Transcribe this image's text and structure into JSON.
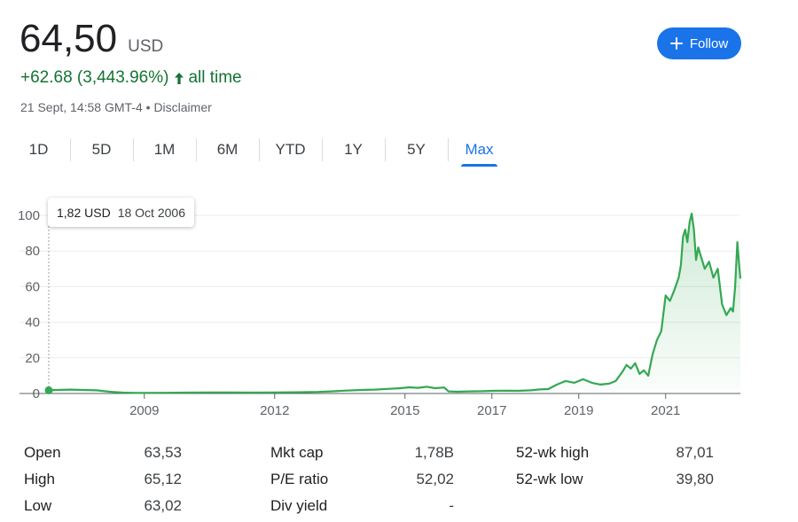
{
  "quote": {
    "price": "64,50",
    "currency": "USD",
    "change": "+62.68 (3,443.96%)",
    "change_period": "all time",
    "timestamp": "21 Sept, 14:58 GMT-4",
    "separator": "•",
    "disclaimer": "Disclaimer"
  },
  "follow_button": {
    "label": "Follow"
  },
  "ranges": [
    "1D",
    "5D",
    "1M",
    "6M",
    "YTD",
    "1Y",
    "5Y",
    "Max"
  ],
  "active_range": "Max",
  "tooltip": {
    "value": "1,82 USD",
    "date": "18 Oct 2006"
  },
  "colors": {
    "line": "#34a853",
    "accent": "#1a73e8",
    "positive": "#137333"
  },
  "chart_data": {
    "type": "area",
    "x_ticks": [
      "2009",
      "2012",
      "2015",
      "2017",
      "2019",
      "2021"
    ],
    "y_ticks": [
      "0",
      "20",
      "40",
      "60",
      "80",
      "100"
    ],
    "ylim": [
      0,
      100
    ],
    "xlim": [
      2006.8,
      2022.72
    ],
    "grid": true,
    "series": [
      {
        "x": [
          2006.8,
          2007.0,
          2007.3,
          2007.6,
          2007.9,
          2008.2,
          2008.5,
          2008.8,
          2009.0,
          2009.5,
          2010.0,
          2010.5,
          2011.0,
          2011.5,
          2012.0,
          2012.5,
          2013.0,
          2013.3,
          2013.6,
          2014.0,
          2014.3,
          2014.6,
          2014.9,
          2015.1,
          2015.3,
          2015.5,
          2015.7,
          2015.9,
          2016.0,
          2016.2,
          2016.5,
          2016.8,
          2017.0,
          2017.3,
          2017.6,
          2017.9,
          2018.1,
          2018.3,
          2018.5,
          2018.7,
          2018.9,
          2019.1,
          2019.3,
          2019.5,
          2019.7,
          2019.85,
          2020.0,
          2020.1,
          2020.2,
          2020.3,
          2020.4,
          2020.5,
          2020.6,
          2020.7,
          2020.8,
          2020.9,
          2021.0,
          2021.1,
          2021.2,
          2021.3,
          2021.35,
          2021.4,
          2021.45,
          2021.5,
          2021.55,
          2021.6,
          2021.65,
          2021.7,
          2021.75,
          2021.8,
          2021.9,
          2022.0,
          2022.1,
          2022.2,
          2022.3,
          2022.4,
          2022.5,
          2022.55,
          2022.6,
          2022.65,
          2022.7,
          2022.72
        ],
        "y": [
          1.8,
          2.0,
          2.2,
          2.0,
          1.8,
          1.0,
          0.5,
          0.3,
          0.3,
          0.4,
          0.5,
          0.6,
          0.6,
          0.5,
          0.6,
          0.7,
          0.9,
          1.2,
          1.6,
          2.0,
          2.2,
          2.6,
          3.0,
          3.5,
          3.2,
          3.8,
          3.0,
          3.4,
          1.2,
          1.0,
          1.2,
          1.3,
          1.5,
          1.6,
          1.5,
          1.8,
          2.3,
          2.5,
          5.0,
          7.0,
          6.0,
          8.0,
          6.0,
          5.0,
          5.5,
          7.0,
          12.0,
          16.0,
          14.0,
          17.0,
          11.0,
          13.0,
          10.0,
          22.0,
          30.0,
          35.0,
          55.0,
          52.0,
          58.0,
          65.0,
          72.0,
          88.0,
          92.0,
          85.0,
          96.0,
          101.0,
          92.0,
          75.0,
          82.0,
          78.0,
          70.0,
          74.0,
          65.0,
          70.0,
          50.0,
          44.0,
          48.0,
          46.0,
          60.0,
          85.0,
          70.0,
          64.5
        ]
      }
    ]
  },
  "stats": [
    {
      "label": "Open",
      "value": "63,53"
    },
    {
      "label": "High",
      "value": "65,12"
    },
    {
      "label": "Low",
      "value": "63,02"
    },
    {
      "label": "Mkt cap",
      "value": "1,78B"
    },
    {
      "label": "P/E ratio",
      "value": "52,02"
    },
    {
      "label": "Div yield",
      "value": "-"
    },
    {
      "label": "52-wk high",
      "value": "87,01"
    },
    {
      "label": "52-wk low",
      "value": "39,80"
    }
  ]
}
